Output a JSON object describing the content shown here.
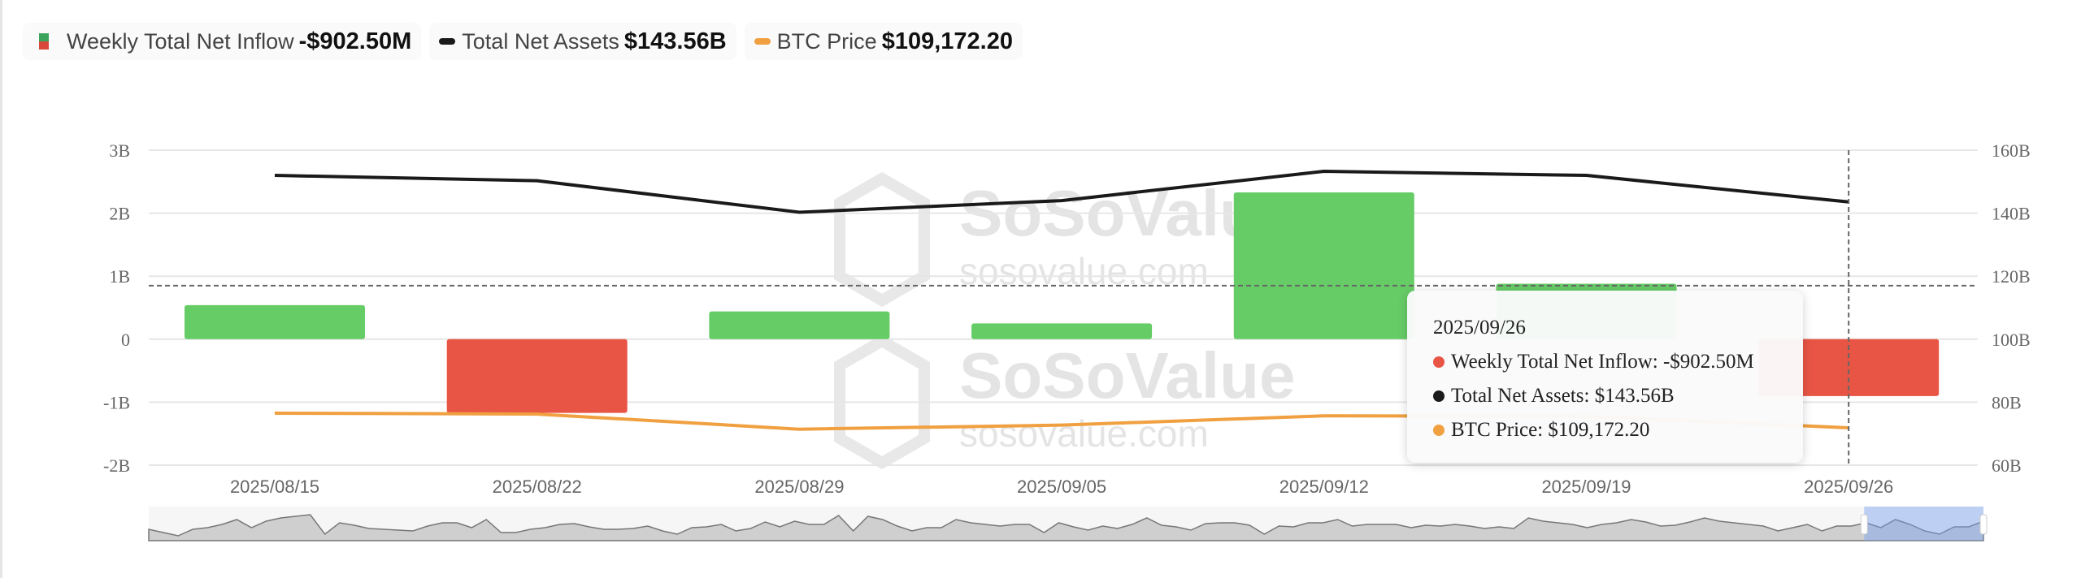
{
  "legend": [
    {
      "label": "Weekly Total Net Inflow",
      "value": "-$902.50M"
    },
    {
      "label": "Total Net Assets",
      "value": "$143.56B",
      "color": "#1a1a1a"
    },
    {
      "label": "BTC Price",
      "value": "$109,172.20",
      "color": "#f0a040"
    }
  ],
  "watermark": {
    "brand": "SoSoValue",
    "site": "sosovalue.com"
  },
  "tooltip": {
    "date": "2025/09/26",
    "rows": [
      {
        "label": "Weekly Total Net Inflow: -$902.50M",
        "color": "#e85545"
      },
      {
        "label": "Total Net Assets: $143.56B",
        "color": "#1a1a1a"
      },
      {
        "label": "BTC Price: $109,172.20",
        "color": "#f0a040"
      }
    ]
  },
  "chart_data": {
    "type": "bar+line",
    "categories": [
      "2025/08/15",
      "2025/08/22",
      "2025/08/29",
      "2025/09/05",
      "2025/09/12",
      "2025/09/19",
      "2025/09/26"
    ],
    "series": [
      {
        "name": "Weekly Total Net Inflow",
        "type": "bar",
        "axis": "left",
        "unit": "B",
        "values": [
          0.54,
          -1.17,
          0.44,
          0.25,
          2.33,
          0.88,
          -0.9025
        ],
        "positive_color": "#66cc66",
        "negative_color": "#e85545"
      },
      {
        "name": "Total Net Assets",
        "type": "line",
        "axis": "right",
        "unit": "B",
        "values": [
          152.0,
          150.3,
          140.3,
          144.0,
          153.3,
          152.0,
          143.56
        ],
        "color": "#1a1a1a"
      },
      {
        "name": "BTC Price",
        "type": "line",
        "axis": "hidden",
        "unit": "USD",
        "values": [
          117400,
          116900,
          108400,
          110700,
          115900,
          115700,
          109172.2
        ],
        "color": "#f0a040"
      }
    ],
    "left_axis": {
      "ticks": [
        "3B",
        "2B",
        "1B",
        "0",
        "-1B",
        "-2B"
      ],
      "range": [
        -2,
        3
      ]
    },
    "right_axis": {
      "ticks": [
        "160B",
        "140B",
        "120B",
        "100B",
        "80B",
        "60B"
      ],
      "range": [
        60,
        160
      ]
    },
    "grid": true,
    "crosshair": {
      "category": "2025/09/26",
      "left_value": 0.85
    },
    "data_zoom": {
      "selected_fraction": [
        0.935,
        1.0
      ],
      "overview": [
        3,
        2.6,
        2.2,
        3,
        3.2,
        3.6,
        4.2,
        3.2,
        4,
        4.4,
        4.6,
        4.8,
        2.4,
        3.8,
        3.5,
        3.1,
        3,
        2.9,
        2.8,
        3.4,
        3.8,
        3.8,
        3.2,
        4.2,
        2.6,
        2.6,
        3,
        3.2,
        3.6,
        3.7,
        3.3,
        3,
        3,
        3.1,
        3.4,
        2.8,
        2.4,
        3.2,
        3.3,
        3.6,
        2.8,
        3.1,
        3.9,
        3.3,
        4,
        3.6,
        3.6,
        4.7,
        2.8,
        4.6,
        4.2,
        3.4,
        2.8,
        3.2,
        3.2,
        4.2,
        3.8,
        3.6,
        3.4,
        3.6,
        3.6,
        2.6,
        3.8,
        3.3,
        2.9,
        3.4,
        3.1,
        3.6,
        4.4,
        3.5,
        3.3,
        2.9,
        3.7,
        3.8,
        3.8,
        3.5,
        2.4,
        3.4,
        3.3,
        3.8,
        3.8,
        4.2,
        3.4,
        3.6,
        3.6,
        3.6,
        3.2,
        3.5,
        3.4,
        3.6,
        3.4,
        3.1,
        3.3,
        3.1,
        4.4,
        4,
        3.8,
        3.6,
        3.2,
        3.6,
        3.8,
        4.2,
        3.9,
        3.4,
        3.5,
        3.9,
        4.4,
        4,
        3.8,
        3.6,
        3.4,
        2.8,
        3.2,
        3.6,
        2.8,
        3.4,
        3.4,
        3.8,
        3.2,
        4.2,
        3.6,
        2.8,
        2.4,
        3.3,
        3.3,
        4
      ]
    }
  }
}
